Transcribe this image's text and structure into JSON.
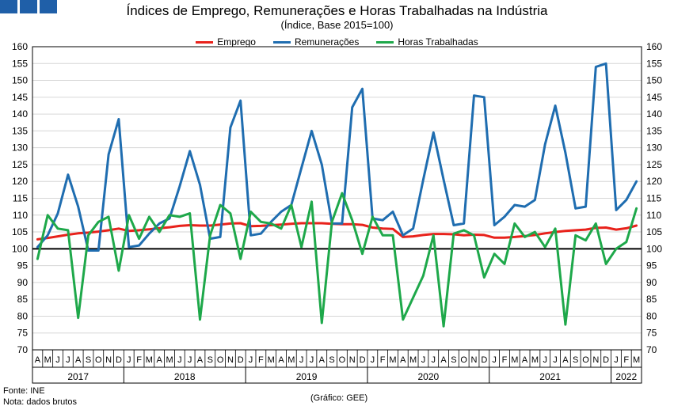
{
  "header": {
    "title": "Índices de Emprego, Remunerações e Horas Trabalhadas na Indústria",
    "subtitle": "(Índice, Base 2015=100)"
  },
  "footer": {
    "source": "Fonte: INE",
    "note": "Nota: dados brutos",
    "credit": "(Gráfico: GEE)"
  },
  "chart_data": {
    "type": "line",
    "title": "Índices de Emprego, Remunerações e Horas Trabalhadas na Indústria",
    "subtitle": "(Índice, Base 2015=100)",
    "legend_position": "top-center",
    "grid": "horizontal",
    "ylim": [
      70,
      160
    ],
    "yticks": [
      70,
      75,
      80,
      85,
      90,
      95,
      100,
      105,
      110,
      115,
      120,
      125,
      130,
      135,
      140,
      145,
      150,
      155,
      160
    ],
    "reference_line": 100,
    "x_month_labels": [
      "A",
      "M",
      "J",
      "J",
      "A",
      "S",
      "O",
      "N",
      "D",
      "J",
      "F",
      "M",
      "A",
      "M",
      "J",
      "J",
      "A",
      "S",
      "O",
      "N",
      "D",
      "J",
      "F",
      "M",
      "A",
      "M",
      "J",
      "J",
      "A",
      "S",
      "O",
      "N",
      "D",
      "J",
      "F",
      "M",
      "A",
      "M",
      "J",
      "J",
      "A",
      "S",
      "O",
      "N",
      "D",
      "J",
      "F",
      "M",
      "A",
      "M",
      "J",
      "J",
      "A",
      "S",
      "O",
      "N",
      "D",
      "J",
      "F",
      "M"
    ],
    "x_year_groups": [
      {
        "label": "2017",
        "start": 0,
        "count": 9
      },
      {
        "label": "2018",
        "start": 9,
        "count": 12
      },
      {
        "label": "2019",
        "start": 21,
        "count": 12
      },
      {
        "label": "2020",
        "start": 33,
        "count": 12
      },
      {
        "label": "2021",
        "start": 45,
        "count": 12
      },
      {
        "label": "2022",
        "start": 57,
        "count": 3
      }
    ],
    "series": [
      {
        "name": "Emprego",
        "color": "#e8221b",
        "values": [
          102.8,
          103.2,
          103.7,
          104.2,
          104.6,
          104.8,
          105.1,
          105.5,
          106.0,
          105.3,
          105.5,
          105.8,
          106.1,
          106.4,
          106.8,
          107.0,
          106.9,
          106.9,
          107.2,
          107.5,
          107.6,
          106.7,
          106.8,
          107.0,
          107.2,
          107.4,
          107.6,
          107.6,
          107.6,
          107.4,
          107.3,
          107.3,
          107.1,
          106.3,
          106.0,
          105.9,
          103.5,
          103.7,
          104.1,
          104.4,
          104.4,
          104.3,
          104.0,
          104.2,
          104.1,
          103.3,
          103.3,
          103.5,
          103.8,
          104.1,
          104.6,
          105.0,
          105.3,
          105.5,
          105.7,
          106.2,
          106.3,
          105.7,
          106.1,
          106.9
        ]
      },
      {
        "name": "Remunerações",
        "color": "#1f6db0",
        "values": [
          100.5,
          104.0,
          110.5,
          122.0,
          112.5,
          99.5,
          99.5,
          128.0,
          138.5,
          100.5,
          101.0,
          104.5,
          107.5,
          109.0,
          118.5,
          129.0,
          119.0,
          103.0,
          103.5,
          136.0,
          144.0,
          104.0,
          104.5,
          108.0,
          111.0,
          113.0,
          124.0,
          135.0,
          125.0,
          107.5,
          107.5,
          142.0,
          147.5,
          109.0,
          108.5,
          111.0,
          104.0,
          106.0,
          120.5,
          134.5,
          120.5,
          107.0,
          107.5,
          145.5,
          145.0,
          107.0,
          109.5,
          113.0,
          112.5,
          114.5,
          131.0,
          142.5,
          128.5,
          112.0,
          112.5,
          154.0,
          155.0,
          111.5,
          114.5,
          120.0
        ]
      },
      {
        "name": "Horas Trabalhadas",
        "color": "#1ea84a",
        "values": [
          97.0,
          110.0,
          106.0,
          105.5,
          79.5,
          104.0,
          108.0,
          109.5,
          93.5,
          110.0,
          103.0,
          109.5,
          105.0,
          110.0,
          109.5,
          110.5,
          79.0,
          104.0,
          113.0,
          110.5,
          97.0,
          111.0,
          108.0,
          107.5,
          106.0,
          113.0,
          100.5,
          114.0,
          78.0,
          108.0,
          116.5,
          108.5,
          98.5,
          109.5,
          104.0,
          104.0,
          79.0,
          85.5,
          92.0,
          104.0,
          77.0,
          104.5,
          105.5,
          104.0,
          91.5,
          98.5,
          95.5,
          107.5,
          103.5,
          105.0,
          100.5,
          106.0,
          77.5,
          104.0,
          102.5,
          107.5,
          95.5,
          100.0,
          102.0,
          112.0
        ]
      }
    ]
  }
}
